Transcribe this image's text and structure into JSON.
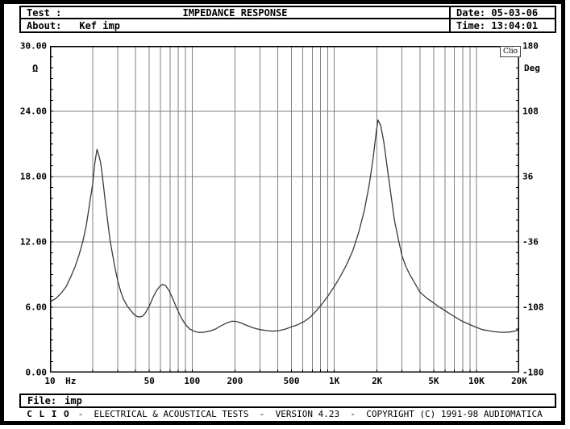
{
  "header": {
    "test_label": "Test :",
    "title": "IMPEDANCE RESPONSE",
    "date_label": "Date:",
    "date_value": "05-03-06",
    "about_label": "About:",
    "about_value": "Kef imp",
    "time_label": "Time:",
    "time_value": "13:04:01"
  },
  "plot": {
    "clio_badge": "Clio"
  },
  "y_axis_left": {
    "unit": "Ω",
    "ticks": [
      {
        "label": "30.00",
        "value": 30
      },
      {
        "label": "24.00",
        "value": 24
      },
      {
        "label": "18.00",
        "value": 18
      },
      {
        "label": "12.00",
        "value": 12
      },
      {
        "label": "6.00",
        "value": 6
      },
      {
        "label": "0.00",
        "value": 0
      }
    ]
  },
  "y_axis_right": {
    "unit": "Deg",
    "ticks": [
      {
        "label": "180",
        "value": 180
      },
      {
        "label": "108",
        "value": 108
      },
      {
        "label": "36",
        "value": 36
      },
      {
        "label": "-36",
        "value": -36
      },
      {
        "label": "-108",
        "value": -108
      },
      {
        "label": "-180",
        "value": -180
      }
    ]
  },
  "x_axis": {
    "unit": "Hz",
    "unit_f": 14,
    "ticks": [
      {
        "label": "10",
        "f": 10
      },
      {
        "label": "50",
        "f": 50
      },
      {
        "label": "100",
        "f": 100
      },
      {
        "label": "200",
        "f": 200
      },
      {
        "label": "500",
        "f": 500
      },
      {
        "label": "1K",
        "f": 1000
      },
      {
        "label": "2K",
        "f": 2000
      },
      {
        "label": "5K",
        "f": 5000
      },
      {
        "label": "10K",
        "f": 10000
      },
      {
        "label": "20K",
        "f": 20000
      }
    ]
  },
  "chart_data": {
    "type": "line",
    "title": "IMPEDANCE RESPONSE",
    "x_scale": "log",
    "xlabel": "Hz",
    "ylabel_left": "Ω",
    "ylabel_right": "Deg",
    "xlim": [
      10,
      20000
    ],
    "ylim_left": [
      0,
      30
    ],
    "ylim_right": [
      -180,
      180
    ],
    "grid": true,
    "legend": "none",
    "x_gridlines": [
      20,
      30,
      40,
      50,
      60,
      70,
      80,
      90,
      100,
      200,
      300,
      400,
      500,
      600,
      700,
      800,
      900,
      1000,
      2000,
      3000,
      4000,
      5000,
      6000,
      7000,
      8000,
      9000,
      10000
    ],
    "y_gridlines_left": [
      24,
      18,
      12,
      6
    ],
    "series": [
      {
        "name": "Impedance magnitude (Ω)",
        "axis": "left",
        "points": [
          [
            10,
            6.5
          ],
          [
            11,
            6.8
          ],
          [
            12,
            7.3
          ],
          [
            13,
            7.9
          ],
          [
            14,
            8.8
          ],
          [
            15,
            9.7
          ],
          [
            16,
            10.8
          ],
          [
            17,
            12.0
          ],
          [
            18,
            13.5
          ],
          [
            19,
            15.5
          ],
          [
            20,
            17.4
          ],
          [
            20.7,
            19.3
          ],
          [
            21.4,
            20.5
          ],
          [
            22,
            20.0
          ],
          [
            22.7,
            19.3
          ],
          [
            23.5,
            17.8
          ],
          [
            24.5,
            15.7
          ],
          [
            25.5,
            13.8
          ],
          [
            26.5,
            12.1
          ],
          [
            27.5,
            10.9
          ],
          [
            28.5,
            9.8
          ],
          [
            30,
            8.4
          ],
          [
            31.5,
            7.4
          ],
          [
            33,
            6.7
          ],
          [
            35,
            6.1
          ],
          [
            37,
            5.7
          ],
          [
            39,
            5.35
          ],
          [
            41,
            5.15
          ],
          [
            43,
            5.1
          ],
          [
            45,
            5.2
          ],
          [
            47,
            5.5
          ],
          [
            50,
            6.1
          ],
          [
            53,
            6.9
          ],
          [
            56,
            7.5
          ],
          [
            59,
            7.9
          ],
          [
            62,
            8.1
          ],
          [
            65,
            8.0
          ],
          [
            69,
            7.5
          ],
          [
            73,
            6.8
          ],
          [
            78,
            5.9
          ],
          [
            84,
            5.0
          ],
          [
            90,
            4.4
          ],
          [
            96,
            4.0
          ],
          [
            103,
            3.8
          ],
          [
            110,
            3.7
          ],
          [
            120,
            3.7
          ],
          [
            132,
            3.8
          ],
          [
            146,
            4.0
          ],
          [
            160,
            4.3
          ],
          [
            175,
            4.55
          ],
          [
            190,
            4.72
          ],
          [
            205,
            4.7
          ],
          [
            222,
            4.55
          ],
          [
            245,
            4.3
          ],
          [
            270,
            4.1
          ],
          [
            300,
            3.95
          ],
          [
            335,
            3.85
          ],
          [
            370,
            3.8
          ],
          [
            410,
            3.85
          ],
          [
            455,
            4.0
          ],
          [
            500,
            4.2
          ],
          [
            555,
            4.4
          ],
          [
            615,
            4.7
          ],
          [
            680,
            5.1
          ],
          [
            750,
            5.7
          ],
          [
            820,
            6.3
          ],
          [
            900,
            7.0
          ],
          [
            1000,
            7.9
          ],
          [
            1100,
            8.8
          ],
          [
            1220,
            9.9
          ],
          [
            1350,
            11.2
          ],
          [
            1480,
            12.8
          ],
          [
            1620,
            14.8
          ],
          [
            1760,
            17.2
          ],
          [
            1880,
            19.8
          ],
          [
            1970,
            22.0
          ],
          [
            2030,
            23.2
          ],
          [
            2120,
            22.7
          ],
          [
            2230,
            21.2
          ],
          [
            2350,
            19.0
          ],
          [
            2500,
            16.4
          ],
          [
            2650,
            14.0
          ],
          [
            2850,
            12.0
          ],
          [
            3000,
            10.7
          ],
          [
            3200,
            9.7
          ],
          [
            3400,
            9.0
          ],
          [
            3650,
            8.3
          ],
          [
            4000,
            7.4
          ],
          [
            4500,
            6.8
          ],
          [
            5000,
            6.4
          ],
          [
            5500,
            6.0
          ],
          [
            6000,
            5.7
          ],
          [
            6500,
            5.4
          ],
          [
            7000,
            5.15
          ],
          [
            7500,
            4.9
          ],
          [
            8000,
            4.7
          ],
          [
            9000,
            4.4
          ],
          [
            10000,
            4.15
          ],
          [
            11000,
            3.95
          ],
          [
            12000,
            3.85
          ],
          [
            13500,
            3.75
          ],
          [
            15000,
            3.7
          ],
          [
            17000,
            3.72
          ],
          [
            18500,
            3.8
          ],
          [
            20000,
            3.95
          ]
        ]
      }
    ]
  },
  "file_bar": {
    "label": "File:",
    "value": "imp"
  },
  "footer": {
    "brand": "C L I O",
    "text": "-  ELECTRICAL & ACOUSTICAL TESTS  -  VERSION 4.23  -  COPYRIGHT (C) 1991-98 AUDIOMATICA"
  },
  "colors": {
    "grid": "#828282",
    "curve": "#3a3a3a",
    "frame": "#000000",
    "background": "#ffffff"
  }
}
